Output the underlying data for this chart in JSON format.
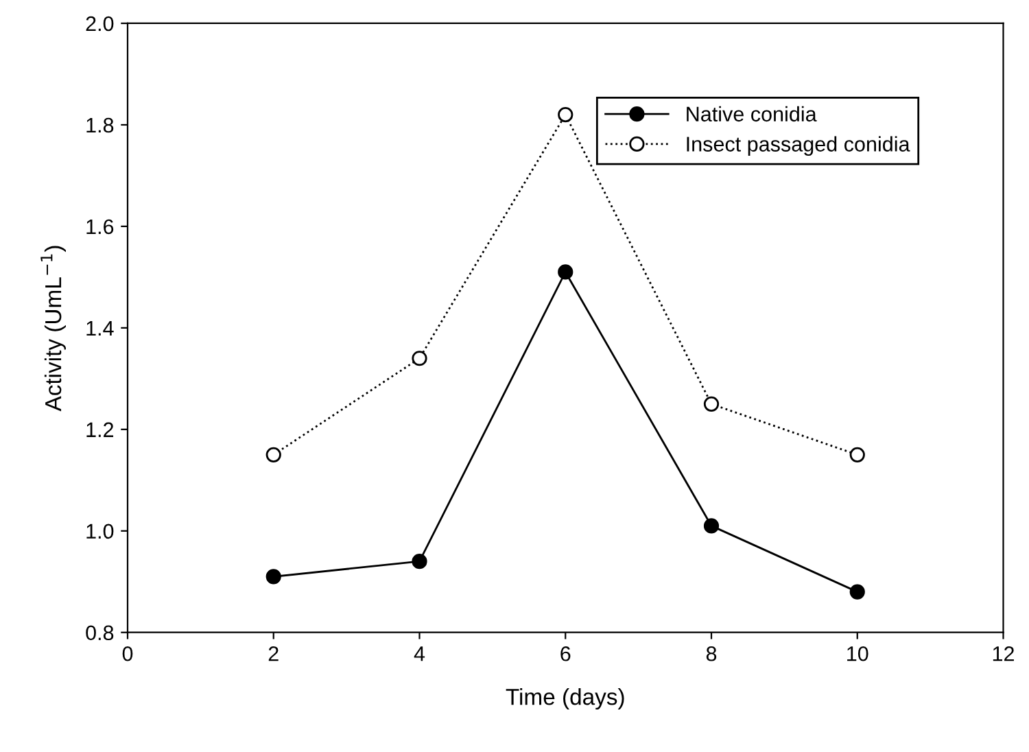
{
  "chart_data": {
    "type": "line",
    "xlabel": "Time (days)",
    "ylabel": "Activity (UmL$^{−1}$)",
    "x": [
      2,
      4,
      6,
      8,
      10
    ],
    "series": [
      {
        "name": "Native conidia",
        "color": "#000000",
        "values": [
          0.91,
          0.94,
          1.51,
          1.01,
          0.88
        ],
        "marker": "circle",
        "line_style": "solid"
      },
      {
        "name": "Insect passaged conidia",
        "color": "#000000",
        "values": [
          1.15,
          1.34,
          1.82,
          1.25,
          1.15
        ],
        "marker": "circle",
        "line_style": "dotted"
      }
    ],
    "xlim": [
      0,
      12
    ],
    "xticks": [
      0,
      2,
      4,
      6,
      8,
      10,
      12
    ],
    "ylim": [
      0.8,
      2.0
    ],
    "yticks": [
      {
        "value": 0.8,
        "label": "0.8"
      },
      {
        "value": 1.0,
        "label": "1.0"
      },
      {
        "value": 1.2,
        "label": "1.2"
      },
      {
        "value": 1.4,
        "label": "1.4"
      },
      {
        "value": 1.6,
        "label": "1.6"
      },
      {
        "value": 1.8,
        "label": "1.8"
      },
      {
        "value": 2.0,
        "label": "2.0"
      }
    ],
    "grid": false,
    "legend": "top right"
  }
}
